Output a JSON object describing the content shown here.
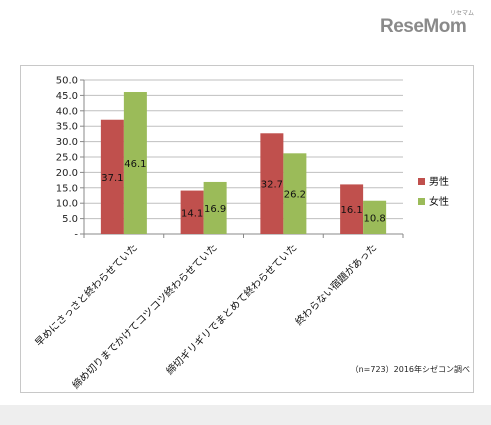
{
  "logo": {
    "main": "ReseMom",
    "ruby": "リセマム"
  },
  "chart_data": {
    "type": "bar",
    "categories": [
      "早めにさっさと終わらせていた",
      "締め切りまでかけてコツコツ終わらせていた",
      "締切ギリギリでまとめて終わらせていた",
      "終わらない宿題があった"
    ],
    "series": [
      {
        "name": "男性",
        "values": [
          37.1,
          14.1,
          32.7,
          16.1
        ],
        "color": "#c0504d"
      },
      {
        "name": "女性",
        "values": [
          46.1,
          16.9,
          26.2,
          10.8
        ],
        "color": "#9bbb59"
      }
    ],
    "data_labels": [
      [
        "37.1",
        "14.1",
        "32.7",
        "16.1"
      ],
      [
        "46.1",
        "16.9",
        "26.2",
        "10.8"
      ]
    ],
    "y_ticks": [
      "-",
      "5.0",
      "10.0",
      "15.0",
      "20.0",
      "25.0",
      "30.0",
      "35.0",
      "40.0",
      "45.0",
      "50.0"
    ],
    "ylim": [
      0,
      50
    ],
    "legend_placement": "right",
    "note": "（n=723）2016年シゼコン調べ"
  }
}
